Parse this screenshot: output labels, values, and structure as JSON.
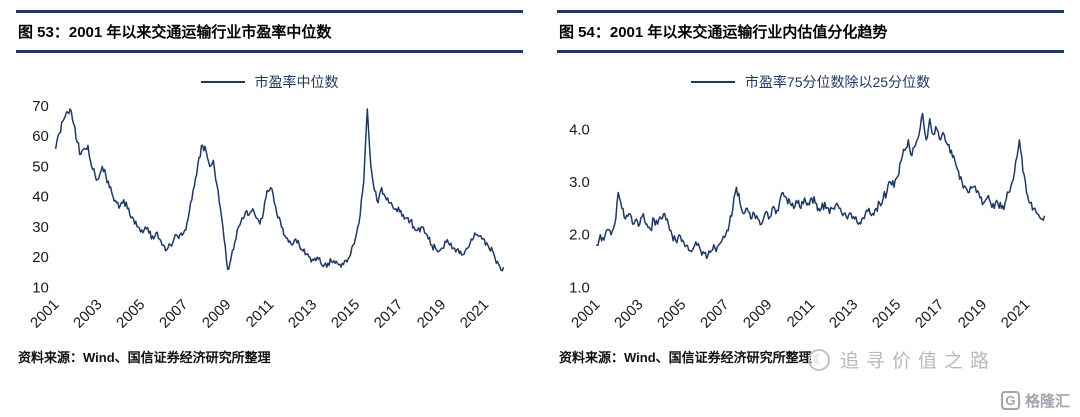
{
  "page": {
    "background": "#ffffff",
    "accent": "#1f3864",
    "text": "#111111",
    "muted": "#b9b9b9"
  },
  "figures": [
    {
      "id": "53",
      "title": "图 53：2001 年以来交通运输行业市盈率中位数",
      "legend": "市盈率中位数",
      "source": "资料来源：Wind、国信证券经济研究所整理"
    },
    {
      "id": "54",
      "title": "图 54：2001 年以来交通运输行业内估值分化趋势",
      "legend": "市盈率75分位数除以25分位数",
      "source": "资料来源：Wind、国信证券经济研究所整理"
    }
  ],
  "watermark": {
    "icon": "☾",
    "text": "追寻价值之路"
  },
  "brand": {
    "logo_letter": "G",
    "logo_text": "格隆汇"
  },
  "chart_data": [
    {
      "type": "line",
      "title": "图 53：2001 年以来交通运输行业市盈率中位数",
      "xlabel": "",
      "ylabel": "",
      "legend_position": "top-center",
      "grid": false,
      "line_color": "#1f3864",
      "x_range": [
        2001,
        2022.1
      ],
      "y_range": [
        10,
        71
      ],
      "x_ticks": [
        2001,
        2003,
        2005,
        2007,
        2009,
        2011,
        2013,
        2015,
        2017,
        2019,
        2021
      ],
      "y_ticks": [
        10,
        20,
        30,
        40,
        50,
        60,
        70
      ],
      "y_tick_labels": [
        "10",
        "20",
        "30",
        "40",
        "50",
        "60",
        "70"
      ],
      "noise_amplitude": 1.3,
      "series": [
        {
          "name": "市盈率中位数",
          "x_start": 2001.0,
          "x_step": 0.1667,
          "values": [
            56,
            61,
            65,
            68,
            69,
            64,
            58,
            54,
            56,
            57,
            50,
            47,
            46,
            50,
            47,
            43,
            40,
            38,
            37,
            39,
            36,
            33,
            31,
            30,
            29,
            30,
            28,
            27,
            28,
            26,
            24,
            22.5,
            24,
            26,
            27,
            28,
            29,
            33,
            39,
            46,
            53,
            57,
            55,
            50,
            52,
            44,
            36,
            26,
            16,
            20,
            25,
            30,
            33,
            35,
            34,
            36,
            33,
            31,
            35,
            42,
            43,
            38,
            33,
            30,
            27,
            25,
            24,
            26,
            24,
            22,
            21,
            20,
            19,
            20,
            18,
            17.5,
            18,
            18.5,
            18,
            17.5,
            18,
            19,
            20,
            24,
            28,
            34,
            45,
            69,
            50,
            42,
            38,
            43,
            40,
            38,
            37,
            36,
            35,
            34,
            33,
            32,
            30,
            29,
            30,
            28,
            26,
            24,
            23,
            22,
            23,
            25,
            24,
            23,
            22.5,
            22,
            21,
            23,
            26,
            28,
            27,
            26,
            24,
            23,
            22,
            18,
            17,
            16.5
          ]
        }
      ]
    },
    {
      "type": "line",
      "title": "图 54：2001 年以来交通运输行业内估值分化趋势",
      "xlabel": "",
      "ylabel": "",
      "legend_position": "top-center",
      "grid": false,
      "line_color": "#1f3864",
      "x_range": [
        2001,
        2022.1
      ],
      "y_range": [
        1.0,
        4.5
      ],
      "x_ticks": [
        2001,
        2003,
        2005,
        2007,
        2009,
        2011,
        2013,
        2015,
        2017,
        2019,
        2021
      ],
      "y_ticks": [
        1.0,
        2.0,
        3.0,
        4.0
      ],
      "y_tick_labels": [
        "1.0",
        "2.0",
        "3.0",
        "4.0"
      ],
      "noise_amplitude": 0.09,
      "series": [
        {
          "name": "市盈率75分位数除以25分位数",
          "x_start": 2001.0,
          "x_step": 0.1667,
          "values": [
            1.8,
            2.0,
            1.9,
            2.1,
            2.0,
            2.2,
            2.8,
            2.5,
            2.3,
            2.4,
            2.2,
            2.3,
            2.2,
            2.4,
            2.2,
            2.1,
            2.3,
            2.2,
            2.3,
            2.4,
            2.2,
            2.0,
            1.9,
            2.0,
            1.9,
            1.8,
            1.7,
            1.75,
            1.8,
            1.7,
            1.65,
            1.6,
            1.7,
            1.75,
            1.8,
            1.9,
            2.0,
            2.2,
            2.5,
            2.9,
            2.6,
            2.4,
            2.5,
            2.3,
            2.4,
            2.3,
            2.2,
            2.4,
            2.3,
            2.5,
            2.4,
            2.6,
            2.8,
            2.7,
            2.6,
            2.5,
            2.6,
            2.5,
            2.7,
            2.6,
            2.7,
            2.6,
            2.5,
            2.6,
            2.5,
            2.4,
            2.5,
            2.6,
            2.5,
            2.4,
            2.3,
            2.4,
            2.3,
            2.2,
            2.3,
            2.4,
            2.5,
            2.4,
            2.5,
            2.6,
            2.7,
            2.8,
            3.0,
            2.9,
            3.1,
            3.4,
            3.6,
            3.8,
            3.5,
            3.7,
            3.9,
            4.3,
            3.8,
            4.2,
            3.9,
            4.0,
            3.8,
            3.9,
            3.7,
            3.6,
            3.4,
            3.2,
            3.0,
            2.9,
            2.8,
            2.9,
            2.8,
            2.7,
            2.6,
            2.7,
            2.6,
            2.5,
            2.6,
            2.5,
            2.6,
            2.8,
            3.0,
            3.4,
            3.8,
            3.2,
            2.8,
            2.6,
            2.5,
            2.4,
            2.3,
            2.35
          ]
        }
      ]
    }
  ]
}
